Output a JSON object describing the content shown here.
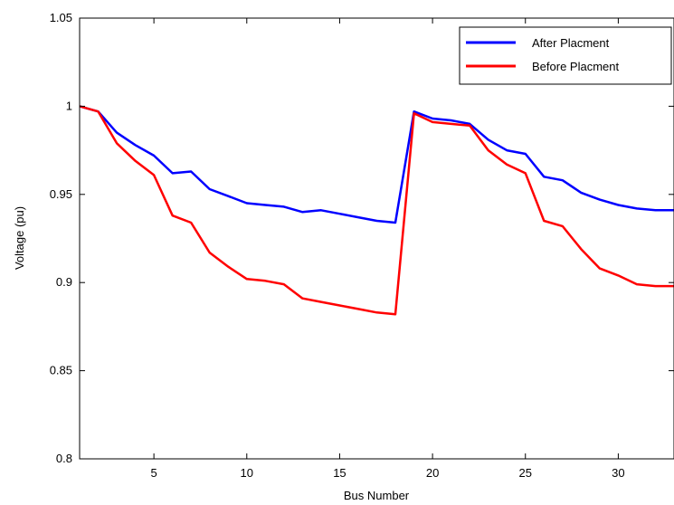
{
  "chart_data": {
    "type": "line",
    "xlabel": "Bus Number",
    "ylabel": "Voltage (pu)",
    "xlim": [
      1,
      33
    ],
    "ylim": [
      0.8,
      1.05
    ],
    "xticks": [
      5,
      10,
      15,
      20,
      25,
      30
    ],
    "yticks": [
      0.8,
      0.85,
      0.9,
      0.95,
      1,
      1.05
    ],
    "grid": false,
    "legend_position": "top-right",
    "series": [
      {
        "name": "After Placment",
        "color": "#0000ff",
        "x": [
          1,
          2,
          3,
          4,
          5,
          6,
          7,
          8,
          9,
          10,
          11,
          12,
          13,
          14,
          15,
          16,
          17,
          18,
          19,
          20,
          21,
          22,
          23,
          24,
          25,
          26,
          27,
          28,
          29,
          30,
          31,
          32,
          33
        ],
        "values": [
          1.0,
          0.997,
          0.985,
          0.978,
          0.972,
          0.962,
          0.963,
          0.953,
          0.949,
          0.945,
          0.944,
          0.943,
          0.94,
          0.941,
          0.939,
          0.937,
          0.935,
          0.934,
          0.997,
          0.993,
          0.992,
          0.99,
          0.981,
          0.975,
          0.973,
          0.96,
          0.958,
          0.951,
          0.947,
          0.944,
          0.942,
          0.941,
          0.941
        ]
      },
      {
        "name": "Before Placment",
        "color": "#ff0000",
        "x": [
          1,
          2,
          3,
          4,
          5,
          6,
          7,
          8,
          9,
          10,
          11,
          12,
          13,
          14,
          15,
          16,
          17,
          18,
          19,
          20,
          21,
          22,
          23,
          24,
          25,
          26,
          27,
          28,
          29,
          30,
          31,
          32,
          33
        ],
        "values": [
          1.0,
          0.997,
          0.979,
          0.969,
          0.961,
          0.938,
          0.934,
          0.917,
          0.909,
          0.902,
          0.901,
          0.899,
          0.891,
          0.889,
          0.887,
          0.885,
          0.883,
          0.882,
          0.996,
          0.991,
          0.99,
          0.989,
          0.975,
          0.967,
          0.962,
          0.935,
          0.932,
          0.919,
          0.908,
          0.904,
          0.899,
          0.898,
          0.898
        ]
      }
    ]
  }
}
